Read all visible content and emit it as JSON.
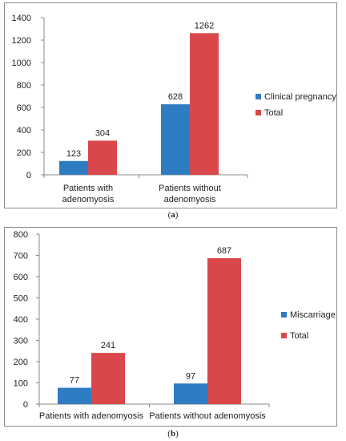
{
  "captions": {
    "a": "a",
    "b": "b"
  },
  "chart_data": [
    {
      "type": "bar",
      "categories": [
        "Patients with adenomyosis",
        "Patients without adenomyosis"
      ],
      "category_lines": [
        [
          "Patients with",
          "adenomyosis"
        ],
        [
          "Patients without",
          "adenomyosis"
        ]
      ],
      "series": [
        {
          "name": "Clinical pregnancy",
          "values": [
            123,
            628
          ],
          "color": "#2e7cc1"
        },
        {
          "name": "Total",
          "values": [
            304,
            1262
          ],
          "color": "#d9474a"
        }
      ],
      "ylim": [
        0,
        1400
      ],
      "yticks": [
        0,
        200,
        400,
        600,
        800,
        1000,
        1200,
        1400
      ],
      "grid": false,
      "legend": "right"
    },
    {
      "type": "bar",
      "categories": [
        "Patients with adenomyosis",
        "Patients without adenomyosis"
      ],
      "category_lines": [
        [
          "Patients with adenomyosis"
        ],
        [
          "Patients without adenomyosis"
        ]
      ],
      "series": [
        {
          "name": "Miscarriage",
          "values": [
            77,
            97
          ],
          "color": "#2e7cc1"
        },
        {
          "name": "Total",
          "values": [
            241,
            687
          ],
          "color": "#d9474a"
        }
      ],
      "ylim": [
        0,
        800
      ],
      "yticks": [
        0,
        100,
        200,
        300,
        400,
        500,
        600,
        700,
        800
      ],
      "grid": false,
      "legend": "right"
    }
  ]
}
